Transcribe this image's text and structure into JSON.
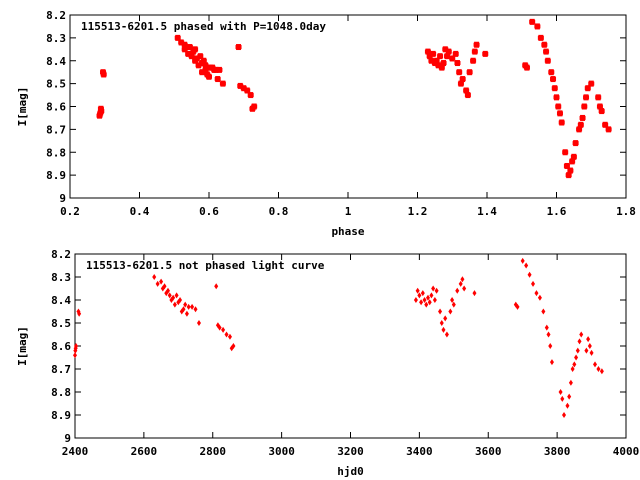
{
  "chart_data": [
    {
      "type": "scatter",
      "title": "115513-6201.5 phased with P=1048.0day",
      "xlabel": "phase",
      "ylabel": "I[mag]",
      "xlim": [
        0.2,
        1.8
      ],
      "ylim": [
        8.2,
        9.0
      ],
      "y_inverted": true,
      "x_ticks": [
        "0.2",
        "0.4",
        "0.6",
        "0.8",
        "1",
        "1.2",
        "1.4",
        "1.6",
        "1.8"
      ],
      "y_ticks": [
        "8.2",
        "8.3",
        "8.4",
        "8.5",
        "8.6",
        "8.7",
        "8.8",
        "8.9",
        "9"
      ],
      "marker_color": "#ff0000",
      "grid": false,
      "series": [
        {
          "x": [
            0.285,
            0.287,
            0.289,
            0.29,
            0.295,
            0.297,
            0.51,
            0.52,
            0.53,
            0.53,
            0.54,
            0.545,
            0.55,
            0.555,
            0.56,
            0.56,
            0.565,
            0.57,
            0.575,
            0.58,
            0.58,
            0.585,
            0.59,
            0.59,
            0.595,
            0.6,
            0.6,
            0.605,
            0.61,
            0.615,
            0.62,
            0.625,
            0.63,
            0.64,
            0.685,
            0.69,
            0.7,
            0.71,
            0.72,
            0.725,
            0.73,
            1.23,
            1.235,
            1.24,
            1.245,
            1.25,
            1.255,
            1.26,
            1.265,
            1.27,
            1.275,
            1.28,
            1.285,
            1.29,
            1.3,
            1.31,
            1.315,
            1.32,
            1.325,
            1.33,
            1.34,
            1.345,
            1.35,
            1.36,
            1.365,
            1.37,
            1.395,
            1.51,
            1.515,
            1.53,
            1.545,
            1.555,
            1.565,
            1.57,
            1.575,
            1.585,
            1.59,
            1.595,
            1.6,
            1.605,
            1.61,
            1.615,
            1.625,
            1.63,
            1.635,
            1.64,
            1.645,
            1.65,
            1.655,
            1.665,
            1.67,
            1.675,
            1.68,
            1.685,
            1.69,
            1.7,
            1.72,
            1.725,
            1.73,
            1.74,
            1.75
          ],
          "y": [
            8.64,
            8.63,
            8.61,
            8.62,
            8.45,
            8.46,
            8.3,
            8.32,
            8.35,
            8.33,
            8.37,
            8.34,
            8.38,
            8.36,
            8.4,
            8.35,
            8.39,
            8.42,
            8.38,
            8.41,
            8.45,
            8.4,
            8.44,
            8.42,
            8.46,
            8.43,
            8.47,
            8.43,
            8.43,
            8.44,
            8.44,
            8.48,
            8.44,
            8.5,
            8.34,
            8.51,
            8.52,
            8.53,
            8.55,
            8.61,
            8.6,
            8.36,
            8.38,
            8.4,
            8.37,
            8.41,
            8.4,
            8.42,
            8.38,
            8.43,
            8.41,
            8.35,
            8.38,
            8.36,
            8.39,
            8.37,
            8.41,
            8.45,
            8.5,
            8.48,
            8.53,
            8.55,
            8.45,
            8.4,
            8.36,
            8.33,
            8.37,
            8.42,
            8.43,
            8.23,
            8.25,
            8.3,
            8.33,
            8.36,
            8.4,
            8.45,
            8.48,
            8.52,
            8.56,
            8.6,
            8.63,
            8.67,
            8.8,
            8.86,
            8.9,
            8.88,
            8.84,
            8.82,
            8.76,
            8.7,
            8.68,
            8.65,
            8.6,
            8.56,
            8.52,
            8.5,
            8.56,
            8.6,
            8.62,
            8.68,
            8.7
          ]
        }
      ]
    },
    {
      "type": "scatter",
      "title": "115513-6201.5 not phased light curve",
      "xlabel": "hjd0",
      "ylabel": "I[mag]",
      "xlim": [
        2400,
        4000
      ],
      "ylim": [
        8.2,
        9.0
      ],
      "y_inverted": true,
      "x_ticks": [
        "2400",
        "2600",
        "2800",
        "3000",
        "3200",
        "3400",
        "3600",
        "3800",
        "4000"
      ],
      "y_ticks": [
        "8.2",
        "8.3",
        "8.4",
        "8.5",
        "8.6",
        "8.7",
        "8.8",
        "8.9",
        "9"
      ],
      "marker_color": "#ff0000",
      "grid": false,
      "series": [
        {
          "x": [
            2400,
            2401,
            2402,
            2403,
            2410,
            2412,
            2630,
            2640,
            2650,
            2655,
            2660,
            2665,
            2670,
            2675,
            2680,
            2685,
            2690,
            2695,
            2700,
            2705,
            2710,
            2715,
            2720,
            2725,
            2730,
            2740,
            2750,
            2760,
            2810,
            2815,
            2820,
            2830,
            2840,
            2850,
            2855,
            2860,
            3390,
            3395,
            3400,
            3405,
            3410,
            3415,
            3420,
            3425,
            3430,
            3435,
            3440,
            3445,
            3450,
            3460,
            3465,
            3470,
            3475,
            3480,
            3490,
            3495,
            3500,
            3510,
            3520,
            3525,
            3530,
            3560,
            3680,
            3685,
            3700,
            3710,
            3720,
            3730,
            3740,
            3750,
            3760,
            3770,
            3775,
            3780,
            3785,
            3810,
            3815,
            3820,
            3830,
            3835,
            3840,
            3845,
            3850,
            3855,
            3860,
            3865,
            3870,
            3885,
            3890,
            3895,
            3900,
            3910,
            3920,
            3930
          ],
          "y": [
            8.64,
            8.62,
            8.61,
            8.6,
            8.45,
            8.46,
            8.3,
            8.33,
            8.32,
            8.35,
            8.34,
            8.37,
            8.36,
            8.38,
            8.4,
            8.39,
            8.42,
            8.38,
            8.41,
            8.4,
            8.45,
            8.44,
            8.42,
            8.46,
            8.43,
            8.43,
            8.44,
            8.5,
            8.34,
            8.51,
            8.52,
            8.53,
            8.55,
            8.56,
            8.61,
            8.6,
            8.4,
            8.36,
            8.38,
            8.41,
            8.37,
            8.4,
            8.42,
            8.39,
            8.41,
            8.38,
            8.35,
            8.4,
            8.36,
            8.45,
            8.5,
            8.53,
            8.48,
            8.55,
            8.45,
            8.4,
            8.42,
            8.36,
            8.33,
            8.31,
            8.35,
            8.37,
            8.42,
            8.43,
            8.23,
            8.25,
            8.29,
            8.33,
            8.37,
            8.39,
            8.45,
            8.52,
            8.55,
            8.6,
            8.67,
            8.8,
            8.83,
            8.9,
            8.86,
            8.82,
            8.76,
            8.7,
            8.68,
            8.65,
            8.62,
            8.58,
            8.55,
            8.62,
            8.57,
            8.6,
            8.63,
            8.68,
            8.7,
            8.71
          ]
        }
      ]
    }
  ]
}
